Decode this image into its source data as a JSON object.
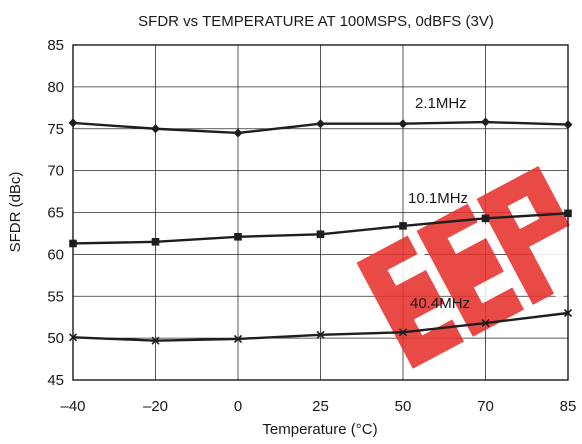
{
  "chart_data": {
    "type": "line",
    "title": "SFDR vs TEMPERATURE AT 100MSPS, 0dBFS (3V)",
    "xlabel": "Temperature (°C)",
    "ylabel": "SFDR (dBc)",
    "ylim": [
      45,
      85
    ],
    "y_ticks": [
      45,
      50,
      55,
      60,
      65,
      70,
      75,
      80,
      85
    ],
    "x_categories": [
      "–40",
      "–20",
      "0",
      "25",
      "50",
      "70",
      "85"
    ],
    "x_values": [
      -40,
      -20,
      0,
      25,
      50,
      70,
      85
    ],
    "grid": true,
    "legend": "inline labels",
    "watermark": "EEP",
    "series": [
      {
        "name": "2.1MHz",
        "marker": "diamond",
        "values": [
          75.7,
          75.0,
          74.5,
          75.6,
          75.6,
          75.8,
          75.5
        ]
      },
      {
        "name": "10.1MHz",
        "marker": "square",
        "values": [
          61.3,
          61.5,
          62.1,
          62.4,
          63.4,
          64.3,
          64.9
        ]
      },
      {
        "name": "40.4MHz",
        "marker": "x",
        "values": [
          50.1,
          49.7,
          49.9,
          50.4,
          50.7,
          51.8,
          53.0
        ]
      }
    ],
    "colors": {
      "line": "#1e1e1e",
      "watermark": "#e8322d"
    }
  }
}
